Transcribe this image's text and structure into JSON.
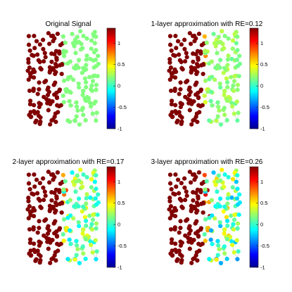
{
  "figure": {
    "colormap": "jet",
    "edge_color": "#b4b4b4",
    "panels": [
      {
        "title": "Original Signal",
        "colorbar": {
          "range": [
            -1,
            1.35
          ],
          "ticks": [
            "1",
            "0.5",
            "0",
            "-0.5",
            "-1"
          ]
        }
      },
      {
        "title": "1-layer approximation with RE=0.12",
        "colorbar": {
          "range": [
            -1,
            1.35
          ],
          "ticks": [
            "1",
            "0.5",
            "0",
            "-0.5",
            "-1"
          ]
        }
      },
      {
        "title": "2-layer approximation with RE=0.17",
        "colorbar": {
          "range": [
            -1,
            1.35
          ],
          "ticks": [
            "1",
            "0.5",
            "0",
            "-0.5",
            "-1"
          ]
        }
      },
      {
        "title": "3-layer approximation with RE=0.26",
        "colorbar": {
          "range": [
            -1,
            1.35
          ],
          "ticks": [
            "1",
            "0.5",
            "0",
            "-0.5",
            "-1"
          ]
        }
      }
    ]
  },
  "chart_data": [
    {
      "type": "scatter",
      "title": "Original Signal",
      "series": [
        {
          "name": "",
          "value": 1.35,
          "count": 115
        },
        {
          "name": "",
          "value": 0.2,
          "count": 115
        }
      ],
      "ylim": [
        -1,
        1.35
      ]
    },
    {
      "type": "scatter",
      "title": "1-layer approximation with RE=0.12",
      "relative_error": 0.12,
      "ylim": [
        -1,
        1.35
      ]
    },
    {
      "type": "scatter",
      "title": "2-layer approximation with RE=0.17",
      "relative_error": 0.17,
      "ylim": [
        -1,
        1.35
      ]
    },
    {
      "type": "scatter",
      "title": "3-layer approximation with RE=0.26",
      "relative_error": 0.26,
      "ylim": [
        -1,
        1.35
      ]
    }
  ]
}
